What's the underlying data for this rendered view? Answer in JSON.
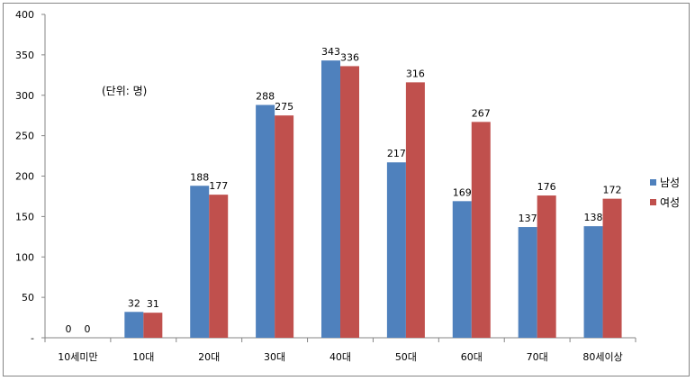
{
  "chart_data": {
    "type": "bar",
    "categories": [
      "10세미만",
      "10대",
      "20대",
      "30대",
      "40대",
      "50대",
      "60대",
      "70대",
      "80세이상"
    ],
    "series": [
      {
        "name": "남성",
        "values": [
          0,
          32,
          188,
          288,
          343,
          217,
          169,
          137,
          138
        ],
        "color": "#4F81BD"
      },
      {
        "name": "여성",
        "values": [
          0,
          31,
          177,
          275,
          336,
          316,
          267,
          176,
          172
        ],
        "color": "#C0504D"
      }
    ],
    "ylim": [
      0,
      400
    ],
    "yticks": [
      0,
      50,
      100,
      150,
      200,
      250,
      300,
      350,
      400
    ],
    "ytick_labels": [
      "-",
      "50",
      "100",
      "150",
      "200",
      "250",
      "300",
      "350",
      "400"
    ],
    "annotation": "(단위: 명)",
    "legend_position": "right",
    "data_labels": true,
    "grid": false
  }
}
